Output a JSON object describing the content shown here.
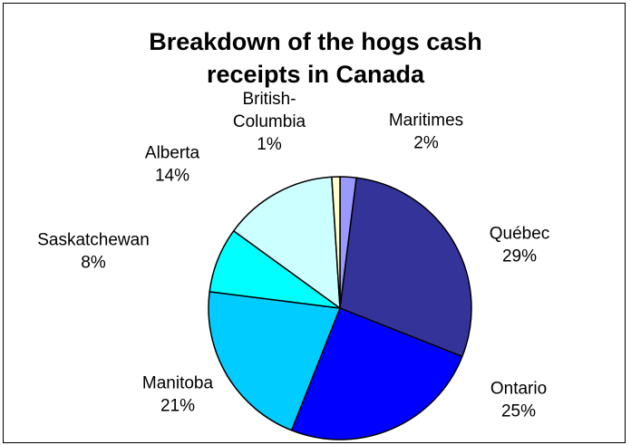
{
  "chart_data": {
    "type": "pie",
    "title": "Breakdown of the hogs cash receipts in Canada",
    "title_lines": [
      "Breakdown of the hogs cash",
      "receipts in Canada"
    ],
    "legend": "none",
    "slices": [
      {
        "label": "Maritimes",
        "label_lines": [
          "Maritimes"
        ],
        "value": 2,
        "percent_label": "2%",
        "color": "#9999ff"
      },
      {
        "label": "Québec",
        "label_lines": [
          "Québec"
        ],
        "value": 29,
        "percent_label": "29%",
        "color": "#333399"
      },
      {
        "label": "Ontario",
        "label_lines": [
          "Ontario"
        ],
        "value": 25,
        "percent_label": "25%",
        "color": "#0000ff"
      },
      {
        "label": "Manitoba",
        "label_lines": [
          "Manitoba"
        ],
        "value": 21,
        "percent_label": "21%",
        "color": "#00ccff"
      },
      {
        "label": "Saskatchewan",
        "label_lines": [
          "Saskatchewan"
        ],
        "value": 8,
        "percent_label": "8%",
        "color": "#00ffff"
      },
      {
        "label": "Alberta",
        "label_lines": [
          "Alberta"
        ],
        "value": 14,
        "percent_label": "14%",
        "color": "#ccffff"
      },
      {
        "label": "British-Columbia",
        "label_lines": [
          "British-",
          "Columbia"
        ],
        "value": 1,
        "percent_label": "1%",
        "color": "#ffffcc"
      }
    ]
  }
}
